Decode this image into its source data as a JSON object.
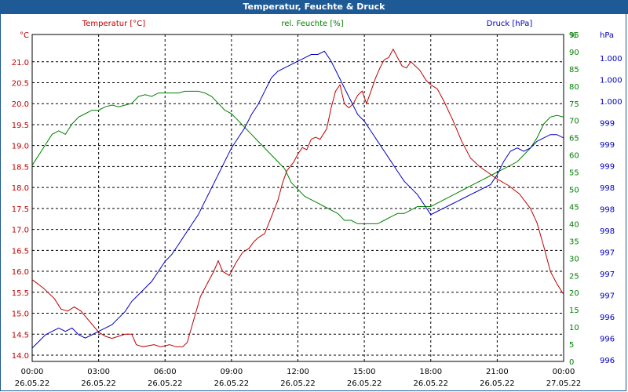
{
  "window": {
    "title": "Temperatur, Feuchte & Druck"
  },
  "chart_data": {
    "type": "line",
    "title": "Temperatur, Feuchte & Druck",
    "grid": true,
    "x": {
      "range_hours": [
        0,
        24
      ],
      "ticks": [
        {
          "hour": 0,
          "time": "00:00",
          "date": "26.05.22"
        },
        {
          "hour": 3,
          "time": "03:00",
          "date": "26.05.22"
        },
        {
          "hour": 6,
          "time": "06:00",
          "date": "26.05.22"
        },
        {
          "hour": 9,
          "time": "09:00",
          "date": "26.05.22"
        },
        {
          "hour": 12,
          "time": "12:00",
          "date": "26.05.22"
        },
        {
          "hour": 15,
          "time": "15:00",
          "date": "26.05.22"
        },
        {
          "hour": 18,
          "time": "18:00",
          "date": "26.05.22"
        },
        {
          "hour": 21,
          "time": "21:00",
          "date": "26.05.22"
        },
        {
          "hour": 24,
          "time": "00:00",
          "date": "27.05.22"
        }
      ]
    },
    "axes": {
      "temperature": {
        "label": "Temperatur [°C]",
        "unit": "°C",
        "color": "#c00000",
        "min": 13.85,
        "max": 21.65,
        "ticks": [
          "21.0",
          "20.5",
          "20.0",
          "19.5",
          "19.0",
          "18.5",
          "18.0",
          "17.5",
          "17.0",
          "16.5",
          "16.0",
          "15.5",
          "15.0",
          "14.5",
          "14.0"
        ]
      },
      "humidity": {
        "label": "rel. Feuchte [%]",
        "unit": "%",
        "color": "#008000",
        "min": 0,
        "max": 95,
        "ticks": [
          "95",
          "90",
          "85",
          "80",
          "75",
          "70",
          "65",
          "60",
          "55",
          "50",
          "45",
          "40",
          "35",
          "30",
          "25",
          "20",
          "15",
          "10",
          "5",
          "0"
        ]
      },
      "pressure": {
        "label": "Druck [hPa]",
        "unit": "hPa",
        "color": "#0000c0",
        "min": 995.85,
        "max": 1000.75,
        "ticks": [
          "1.000",
          "1.000",
          "1.000",
          "999",
          "999",
          "999",
          "998",
          "998",
          "998",
          "997",
          "997",
          "997",
          "996",
          "996",
          "996"
        ]
      }
    },
    "series": [
      {
        "name": "Temperatur",
        "axis": "temperature",
        "color": "#c00000",
        "points": [
          [
            0,
            15.8
          ],
          [
            0.5,
            15.6
          ],
          [
            1,
            15.35
          ],
          [
            1.3,
            15.1
          ],
          [
            1.6,
            15.05
          ],
          [
            1.9,
            15.15
          ],
          [
            2.2,
            15.05
          ],
          [
            2.6,
            14.8
          ],
          [
            3,
            14.55
          ],
          [
            3.3,
            14.45
          ],
          [
            3.6,
            14.4
          ],
          [
            3.9,
            14.45
          ],
          [
            4.2,
            14.5
          ],
          [
            4.5,
            14.5
          ],
          [
            4.7,
            14.25
          ],
          [
            5,
            14.2
          ],
          [
            5.5,
            14.25
          ],
          [
            5.8,
            14.2
          ],
          [
            6.2,
            14.25
          ],
          [
            6.5,
            14.2
          ],
          [
            6.8,
            14.2
          ],
          [
            7,
            14.3
          ],
          [
            7.3,
            14.85
          ],
          [
            7.6,
            15.4
          ],
          [
            7.9,
            15.7
          ],
          [
            8.2,
            16.0
          ],
          [
            8.4,
            16.25
          ],
          [
            8.6,
            16.0
          ],
          [
            8.9,
            15.9
          ],
          [
            9.2,
            16.2
          ],
          [
            9.5,
            16.45
          ],
          [
            9.8,
            16.55
          ],
          [
            10,
            16.7
          ],
          [
            10.2,
            16.8
          ],
          [
            10.5,
            16.9
          ],
          [
            10.8,
            17.3
          ],
          [
            11.1,
            17.7
          ],
          [
            11.3,
            18.1
          ],
          [
            11.5,
            18.4
          ],
          [
            11.8,
            18.6
          ],
          [
            12,
            18.8
          ],
          [
            12.2,
            18.95
          ],
          [
            12.4,
            18.9
          ],
          [
            12.6,
            19.15
          ],
          [
            12.8,
            19.2
          ],
          [
            13,
            19.15
          ],
          [
            13.3,
            19.4
          ],
          [
            13.5,
            19.9
          ],
          [
            13.7,
            20.3
          ],
          [
            13.9,
            20.45
          ],
          [
            14.1,
            20.0
          ],
          [
            14.3,
            19.9
          ],
          [
            14.5,
            20.0
          ],
          [
            14.7,
            20.2
          ],
          [
            14.9,
            20.3
          ],
          [
            15.1,
            20.0
          ],
          [
            15.3,
            20.3
          ],
          [
            15.5,
            20.6
          ],
          [
            15.7,
            20.85
          ],
          [
            15.9,
            21.05
          ],
          [
            16.1,
            21.1
          ],
          [
            16.3,
            21.3
          ],
          [
            16.5,
            21.1
          ],
          [
            16.7,
            20.9
          ],
          [
            16.9,
            20.85
          ],
          [
            17.1,
            21.0
          ],
          [
            17.3,
            20.9
          ],
          [
            17.5,
            20.8
          ],
          [
            17.8,
            20.55
          ],
          [
            18,
            20.45
          ],
          [
            18.3,
            20.35
          ],
          [
            18.6,
            20.05
          ],
          [
            19,
            19.6
          ],
          [
            19.4,
            19.1
          ],
          [
            19.8,
            18.7
          ],
          [
            20.2,
            18.5
          ],
          [
            20.6,
            18.35
          ],
          [
            21,
            18.2
          ],
          [
            21.5,
            18.05
          ],
          [
            22,
            17.85
          ],
          [
            22.5,
            17.5
          ],
          [
            22.8,
            17.15
          ],
          [
            23.1,
            16.6
          ],
          [
            23.4,
            16.0
          ],
          [
            23.7,
            15.7
          ],
          [
            24,
            15.45
          ]
        ]
      },
      {
        "name": "rel. Feuchte",
        "axis": "humidity",
        "color": "#008000",
        "points": [
          [
            0,
            57
          ],
          [
            0.3,
            60
          ],
          [
            0.6,
            63
          ],
          [
            0.9,
            66
          ],
          [
            1.2,
            67
          ],
          [
            1.5,
            66
          ],
          [
            1.8,
            69
          ],
          [
            2.1,
            71
          ],
          [
            2.4,
            72
          ],
          [
            2.7,
            73
          ],
          [
            3,
            73
          ],
          [
            3.3,
            74
          ],
          [
            3.6,
            74.5
          ],
          [
            3.9,
            74
          ],
          [
            4.2,
            74.5
          ],
          [
            4.5,
            75
          ],
          [
            4.8,
            77
          ],
          [
            5.1,
            77.5
          ],
          [
            5.4,
            77
          ],
          [
            5.7,
            78
          ],
          [
            6,
            78
          ],
          [
            6.3,
            78
          ],
          [
            6.6,
            78
          ],
          [
            6.9,
            78.5
          ],
          [
            7.2,
            78.5
          ],
          [
            7.5,
            78.5
          ],
          [
            7.8,
            78
          ],
          [
            8.1,
            77
          ],
          [
            8.4,
            75
          ],
          [
            8.7,
            73
          ],
          [
            9,
            72
          ],
          [
            9.3,
            70
          ],
          [
            9.6,
            68
          ],
          [
            9.9,
            66
          ],
          [
            10.2,
            64
          ],
          [
            10.5,
            62
          ],
          [
            10.8,
            60
          ],
          [
            11.1,
            58
          ],
          [
            11.4,
            56
          ],
          [
            11.7,
            52
          ],
          [
            12,
            50
          ],
          [
            12.3,
            48
          ],
          [
            12.6,
            47
          ],
          [
            12.9,
            46
          ],
          [
            13.2,
            45
          ],
          [
            13.5,
            44
          ],
          [
            13.8,
            43
          ],
          [
            14.1,
            41
          ],
          [
            14.4,
            41
          ],
          [
            14.7,
            40
          ],
          [
            15,
            40
          ],
          [
            15.3,
            40
          ],
          [
            15.6,
            40
          ],
          [
            15.9,
            41
          ],
          [
            16.2,
            42
          ],
          [
            16.5,
            43
          ],
          [
            16.8,
            43
          ],
          [
            17.1,
            44
          ],
          [
            17.4,
            45
          ],
          [
            17.7,
            45
          ],
          [
            18,
            45
          ],
          [
            18.3,
            46
          ],
          [
            18.6,
            47
          ],
          [
            18.9,
            48
          ],
          [
            19.2,
            49
          ],
          [
            19.5,
            50
          ],
          [
            19.8,
            51
          ],
          [
            20.1,
            52
          ],
          [
            20.4,
            53
          ],
          [
            20.7,
            54
          ],
          [
            21,
            55
          ],
          [
            21.3,
            56
          ],
          [
            21.6,
            57
          ],
          [
            21.9,
            58
          ],
          [
            22.2,
            60
          ],
          [
            22.5,
            62
          ],
          [
            22.8,
            65
          ],
          [
            23.1,
            69
          ],
          [
            23.4,
            71
          ],
          [
            23.7,
            71.5
          ],
          [
            24,
            71
          ]
        ]
      },
      {
        "name": "Druck",
        "axis": "pressure",
        "color": "#0000c0",
        "points": [
          [
            0,
            996.05
          ],
          [
            0.3,
            996.15
          ],
          [
            0.6,
            996.25
          ],
          [
            0.9,
            996.3
          ],
          [
            1.2,
            996.35
          ],
          [
            1.5,
            996.3
          ],
          [
            1.8,
            996.35
          ],
          [
            2.1,
            996.25
          ],
          [
            2.4,
            996.2
          ],
          [
            2.7,
            996.25
          ],
          [
            3,
            996.3
          ],
          [
            3.3,
            996.35
          ],
          [
            3.6,
            996.4
          ],
          [
            3.9,
            996.5
          ],
          [
            4.2,
            996.6
          ],
          [
            4.5,
            996.75
          ],
          [
            4.8,
            996.85
          ],
          [
            5.1,
            996.95
          ],
          [
            5.4,
            997.05
          ],
          [
            5.7,
            997.2
          ],
          [
            6,
            997.35
          ],
          [
            6.3,
            997.45
          ],
          [
            6.6,
            997.6
          ],
          [
            6.9,
            997.75
          ],
          [
            7.2,
            997.9
          ],
          [
            7.5,
            998.05
          ],
          [
            7.8,
            998.25
          ],
          [
            8.1,
            998.45
          ],
          [
            8.4,
            998.65
          ],
          [
            8.7,
            998.85
          ],
          [
            9,
            999.05
          ],
          [
            9.3,
            999.2
          ],
          [
            9.6,
            999.35
          ],
          [
            9.9,
            999.55
          ],
          [
            10.2,
            999.7
          ],
          [
            10.5,
            999.9
          ],
          [
            10.8,
            1000.1
          ],
          [
            11.1,
            1000.2
          ],
          [
            11.4,
            1000.25
          ],
          [
            11.7,
            1000.3
          ],
          [
            12,
            1000.35
          ],
          [
            12.3,
            1000.4
          ],
          [
            12.6,
            1000.45
          ],
          [
            12.9,
            1000.45
          ],
          [
            13.2,
            1000.5
          ],
          [
            13.5,
            1000.35
          ],
          [
            13.8,
            1000.15
          ],
          [
            14.1,
            999.95
          ],
          [
            14.4,
            999.75
          ],
          [
            14.7,
            999.55
          ],
          [
            15,
            999.45
          ],
          [
            15.3,
            999.3
          ],
          [
            15.6,
            999.15
          ],
          [
            15.9,
            999.0
          ],
          [
            16.2,
            998.85
          ],
          [
            16.5,
            998.7
          ],
          [
            16.8,
            998.55
          ],
          [
            17.1,
            998.45
          ],
          [
            17.4,
            998.35
          ],
          [
            17.7,
            998.2
          ],
          [
            18,
            998.05
          ],
          [
            18.3,
            998.1
          ],
          [
            18.6,
            998.15
          ],
          [
            18.9,
            998.2
          ],
          [
            19.2,
            998.25
          ],
          [
            19.5,
            998.3
          ],
          [
            19.8,
            998.35
          ],
          [
            20.1,
            998.4
          ],
          [
            20.4,
            998.45
          ],
          [
            20.7,
            998.5
          ],
          [
            21,
            998.65
          ],
          [
            21.3,
            998.85
          ],
          [
            21.6,
            999.0
          ],
          [
            21.9,
            999.05
          ],
          [
            22.2,
            999.0
          ],
          [
            22.5,
            999.05
          ],
          [
            22.8,
            999.15
          ],
          [
            23.1,
            999.2
          ],
          [
            23.4,
            999.25
          ],
          [
            23.7,
            999.25
          ],
          [
            24,
            999.2
          ]
        ]
      }
    ]
  }
}
